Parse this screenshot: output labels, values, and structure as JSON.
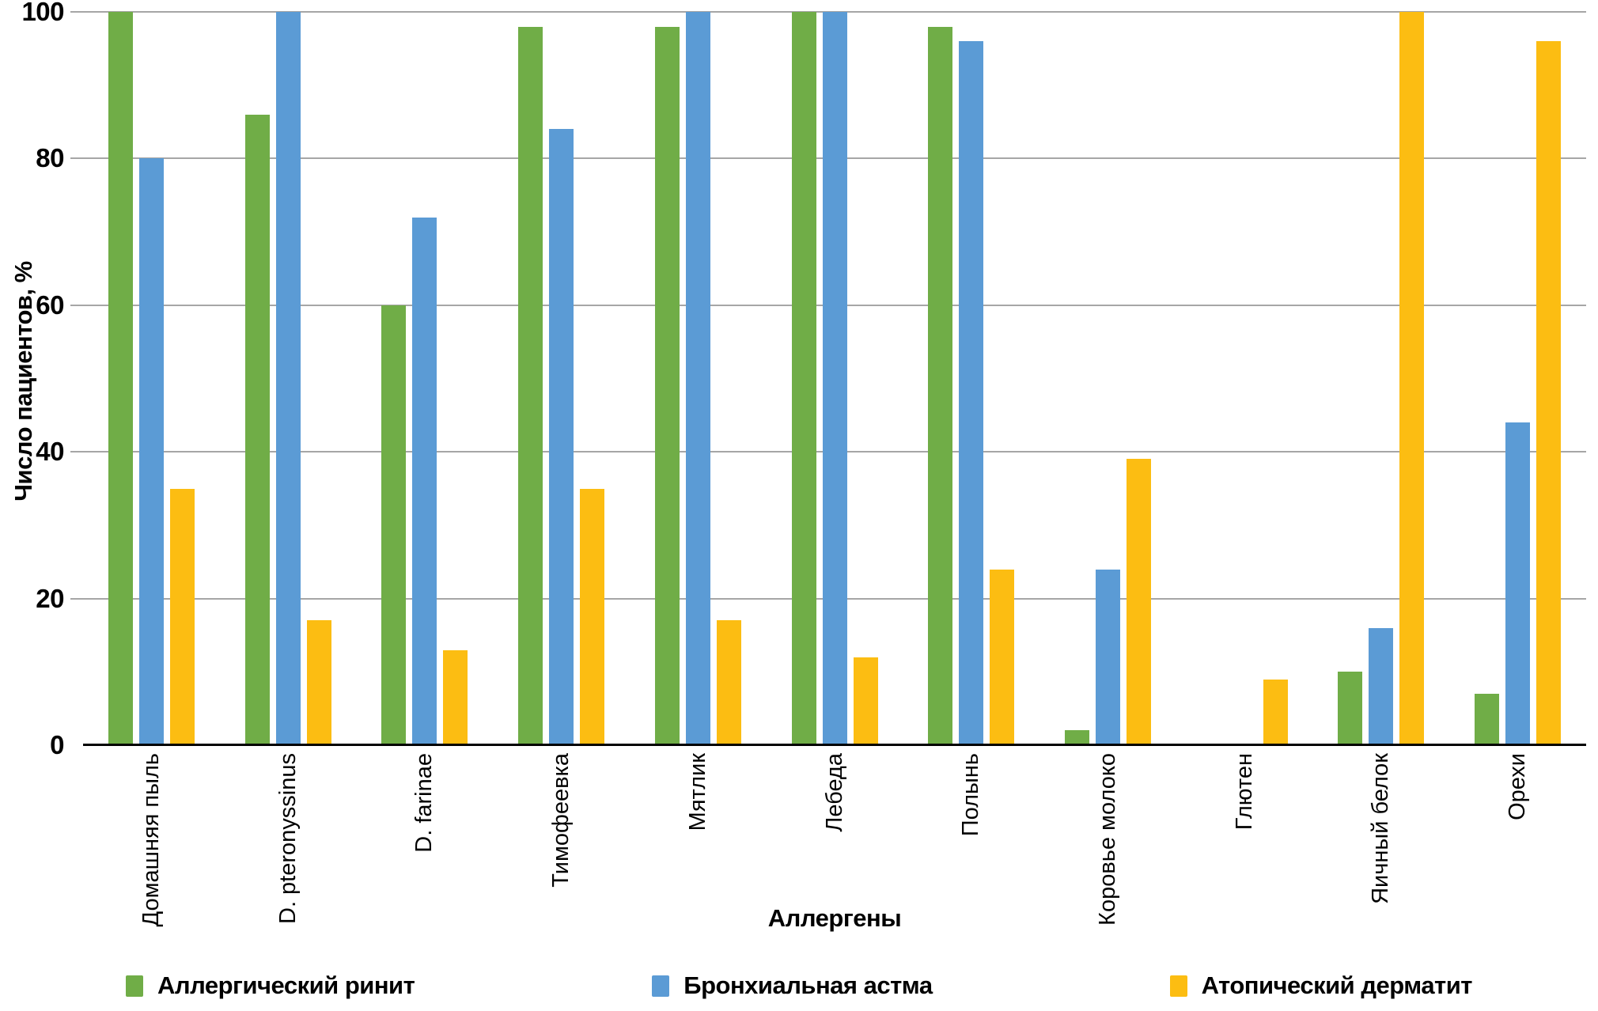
{
  "chart_data": {
    "type": "bar",
    "title": "",
    "categories": [
      "Домашняя пыль",
      "D. pteronyssinus",
      "D. farinae",
      "Тимофеевка",
      "Мятлик",
      "Лебеда",
      "Полынь",
      "Коровье молоко",
      "Глютен",
      "Яичный белок",
      "Орехи"
    ],
    "series": [
      {
        "name": "Аллергический ринит",
        "color": "#70AD47",
        "values": [
          100,
          86,
          60,
          98,
          98,
          100,
          98,
          2,
          0,
          10,
          7
        ]
      },
      {
        "name": "Бронхиальная астма",
        "color": "#5B9BD5",
        "values": [
          80,
          100,
          72,
          84,
          100,
          100,
          96,
          24,
          0,
          16,
          44
        ]
      },
      {
        "name": "Атопический дерматит",
        "color": "#FCBD12",
        "values": [
          35,
          17,
          13,
          35,
          17,
          12,
          24,
          39,
          9,
          100,
          96
        ]
      }
    ],
    "xlabel": "Аллергены",
    "ylabel": "Число пациентов, %",
    "yticks": [
      0,
      20,
      40,
      60,
      80,
      100
    ],
    "ylim": [
      0,
      100
    ],
    "grid": "horizontal",
    "gridline_color": "#A6A6A6",
    "axis_color": "#000000",
    "legend_position": "bottom"
  }
}
